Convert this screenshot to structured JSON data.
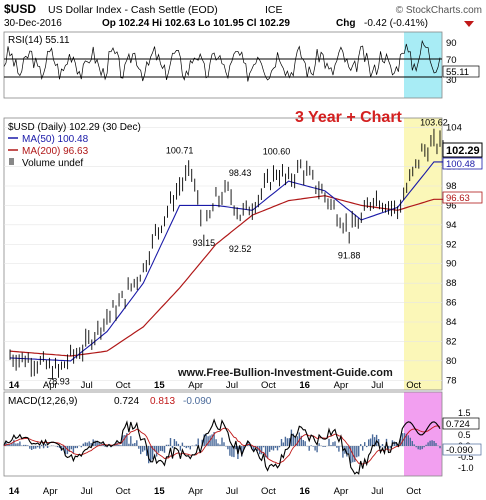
{
  "header": {
    "symbol": "$USD",
    "name": "US Dollar Index - Cash Settle (EOD)",
    "exchange": "ICE",
    "brand": "© StockCharts.com",
    "date": "30-Dec-2016",
    "ohlc": "Op 102.24  Hi 102.63  Lo 101.95  Cl 102.29",
    "chg_label": "Chg",
    "chg_value": "-0.42 (-0.41%)"
  },
  "rsi_panel": {
    "label": "RSI(14) 55.11",
    "last": "55.11",
    "ticks": [
      "90",
      "70",
      "50",
      "30",
      "10"
    ]
  },
  "price_panel": {
    "legend_main": "$USD (Daily) 102.29 (30 Dec)",
    "legend_ma50": "MA(50) 100.48",
    "legend_ma200": "MA(200) 96.63",
    "legend_volume": "Volume undef",
    "annotation": "3 Year + Chart",
    "watermark": "www.Free-Bullion-Investment-Guide.com",
    "last_price": "102.29",
    "last_ma50": "100.48",
    "last_ma200": "96.63",
    "y_ticks": [
      "104",
      "100",
      "98",
      "96",
      "94",
      "92",
      "90",
      "88",
      "86",
      "84",
      "82",
      "80",
      "78"
    ]
  },
  "macd_panel": {
    "label": "MACD(12,26,9)",
    "macd": "0.724",
    "signal": "0.813",
    "hist": "-0.090",
    "last_macd": "0.724",
    "last_hist": "-0.090",
    "y_ticks": [
      "1.5",
      "1.0",
      "0.5",
      "0.0",
      "-0.5",
      "-1.0"
    ]
  },
  "x_axis": {
    "labels": [
      "14",
      "Apr",
      "Jul",
      "Oct",
      "15",
      "Apr",
      "Jul",
      "Oct",
      "16",
      "Apr",
      "Jul",
      "Oct"
    ]
  },
  "colors": {
    "up": "#000000",
    "ma50": "#1a1aa8",
    "ma200": "#b01818",
    "annotation": "#d42020",
    "watermark": "#1a1a1a",
    "rsi_highlight": "#a8ecf5",
    "price_highlight": "#fbf7b8",
    "macd_highlight": "#f29ff0"
  },
  "chart_data": {
    "type": "line",
    "title": "$USD US Dollar Index - Cash Settle (EOD)",
    "x_labels": [
      "14",
      "Apr",
      "Jul",
      "Oct",
      "15",
      "Apr",
      "Jul",
      "Oct",
      "16",
      "Apr",
      "Jul",
      "Oct"
    ],
    "ylim": [
      77,
      105
    ],
    "series": [
      {
        "name": "$USD (Daily)",
        "x": [
          "2014-01",
          "2014-03",
          "2014-05",
          "2014-06",
          "2014-07",
          "2014-09",
          "2014-10",
          "2014-12",
          "2015-01",
          "2015-03",
          "2015-04",
          "2015-05",
          "2015-06",
          "2015-07",
          "2015-08",
          "2015-09",
          "2015-11",
          "2015-12",
          "2016-01",
          "2016-03",
          "2016-05",
          "2016-06",
          "2016-07",
          "2016-09",
          "2016-10",
          "2016-11",
          "2016-12"
        ],
        "values": [
          80.5,
          80.0,
          78.93,
          80.4,
          81.2,
          84.5,
          85.8,
          89.5,
          93.0,
          98.0,
          99.5,
          93.15,
          96.5,
          97.5,
          95.0,
          96.0,
          99.5,
          98.5,
          100.0,
          97.0,
          93.5,
          94.5,
          97.0,
          95.5,
          98.5,
          101.5,
          102.29
        ]
      },
      {
        "name": "MA(50)",
        "x": [
          "2014-01",
          "2014-06",
          "2014-09",
          "2014-12",
          "2015-03",
          "2015-06",
          "2015-09",
          "2015-12",
          "2016-03",
          "2016-06",
          "2016-09",
          "2016-12"
        ],
        "values": [
          80.3,
          80.0,
          83.0,
          88.0,
          96.0,
          96.0,
          95.5,
          98.5,
          97.5,
          94.5,
          95.8,
          100.48
        ]
      },
      {
        "name": "MA(200)",
        "x": [
          "2014-01",
          "2014-06",
          "2014-09",
          "2014-12",
          "2015-03",
          "2015-06",
          "2015-09",
          "2015-12",
          "2016-03",
          "2016-06",
          "2016-09",
          "2016-12"
        ],
        "values": [
          81.0,
          80.5,
          81.0,
          83.5,
          87.5,
          92.0,
          95.0,
          96.5,
          97.0,
          96.0,
          95.5,
          96.63
        ]
      }
    ],
    "annotations": [
      {
        "label": "78.93",
        "x": "2014-05",
        "y": 78.93
      },
      {
        "label": "100.71",
        "x": "2015-03",
        "y": 100.71
      },
      {
        "label": "93.15",
        "x": "2015-05",
        "y": 93.15
      },
      {
        "label": "98.43",
        "x": "2015-08",
        "y": 98.43
      },
      {
        "label": "92.52",
        "x": "2015-08",
        "y": 92.52
      },
      {
        "label": "100.60",
        "x": "2015-11",
        "y": 100.6
      },
      {
        "label": "91.88",
        "x": "2016-05",
        "y": 91.88
      },
      {
        "label": "103.62",
        "x": "2016-12",
        "y": 103.62
      }
    ],
    "rsi": {
      "name": "RSI(14)",
      "last": 55.11,
      "ylim": [
        10,
        90
      ]
    },
    "macd": {
      "macd": 0.724,
      "signal": 0.813,
      "histogram": -0.09
    }
  }
}
